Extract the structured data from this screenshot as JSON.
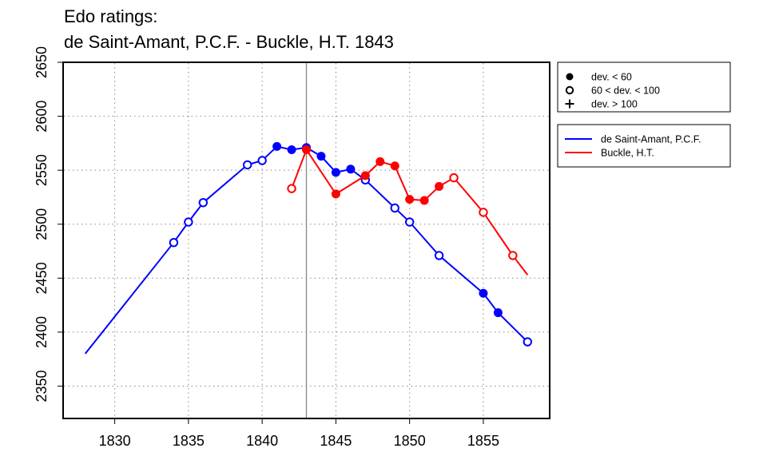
{
  "chart_data": {
    "type": "line",
    "title": "Edo ratings:",
    "subtitle": "de Saint-Amant, P.C.F. - Buckle, H.T. 1843",
    "xlabel": "",
    "ylabel": "",
    "xlim": [
      1826.5,
      1859.5
    ],
    "ylim": [
      2320,
      2650
    ],
    "x_ticks": [
      1830,
      1835,
      1840,
      1845,
      1850,
      1855
    ],
    "y_ticks": [
      2350,
      2400,
      2450,
      2500,
      2550,
      2600,
      2650
    ],
    "grid": true,
    "marker_year": 1843,
    "legend_position": "right",
    "marker_legend": [
      {
        "symbol": "filled-circle",
        "label": "dev. < 60"
      },
      {
        "symbol": "open-circle",
        "label": "60 < dev. < 100"
      },
      {
        "symbol": "plus",
        "label": "dev. > 100"
      }
    ],
    "series": [
      {
        "name": "de Saint-Amant, P.C.F.",
        "color": "#0000ff",
        "x": [
          1828,
          1834,
          1835,
          1836,
          1839,
          1840,
          1841,
          1842,
          1843,
          1844,
          1845,
          1846,
          1847,
          1849,
          1850,
          1852,
          1855,
          1856,
          1858
        ],
        "y": [
          2380,
          2483,
          2502,
          2520,
          2555,
          2559,
          2572,
          2569,
          2571,
          2563,
          2548,
          2551,
          2541,
          2515,
          2502,
          2471,
          2436,
          2418,
          2391
        ],
        "markers": [
          "none",
          "open",
          "open",
          "open",
          "open",
          "open",
          "filled",
          "filled",
          "filled",
          "filled",
          "filled",
          "filled",
          "open",
          "open",
          "open",
          "open",
          "filled",
          "filled",
          "open"
        ]
      },
      {
        "name": "Buckle, H.T.",
        "color": "#ff0000",
        "x": [
          1842,
          1843,
          1845,
          1847,
          1848,
          1849,
          1850,
          1851,
          1852,
          1853,
          1855,
          1857,
          1858
        ],
        "y": [
          2533,
          2569,
          2528,
          2545,
          2558,
          2554,
          2523,
          2522,
          2535,
          2543,
          2511,
          2471,
          2453
        ],
        "markers": [
          "open",
          "filled",
          "filled",
          "filled",
          "filled",
          "filled",
          "filled",
          "filled",
          "filled",
          "open",
          "open",
          "open",
          "none"
        ]
      }
    ]
  }
}
